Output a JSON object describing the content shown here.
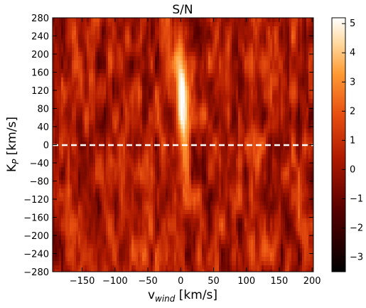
{
  "chart_data": {
    "type": "heatmap",
    "title": "S/N",
    "xlabel": {
      "main": "v",
      "sub": "wind",
      "unit": " [km/s]"
    },
    "ylabel": {
      "main": "K",
      "sub": "P",
      "unit": " [km/s]"
    },
    "xlim": [
      -195,
      202
    ],
    "ylim": [
      -280,
      280
    ],
    "x_ticks": [
      "−150",
      "−100",
      "−50",
      "0",
      "50",
      "100",
      "150",
      "200"
    ],
    "x_tick_values": [
      -150,
      -100,
      -50,
      0,
      50,
      100,
      150,
      200
    ],
    "y_ticks": [
      "280",
      "240",
      "200",
      "160",
      "120",
      "80",
      "40",
      "0",
      "−40",
      "−80",
      "−120",
      "−160",
      "−200",
      "−240",
      "−280"
    ],
    "y_tick_values": [
      280,
      240,
      200,
      160,
      120,
      80,
      40,
      0,
      -40,
      -80,
      -120,
      -160,
      -200,
      -240,
      -280
    ],
    "colorbar": {
      "range": [
        -3.5,
        5.2
      ],
      "ticks": [
        "5",
        "4",
        "3",
        "2",
        "1",
        "0",
        "−1",
        "−2",
        "−3"
      ],
      "tick_values": [
        5,
        4,
        3,
        2,
        1,
        0,
        -1,
        -2,
        -3
      ],
      "colormap": "gist_heat"
    },
    "reference_line": {
      "y": 0,
      "style": "dashed",
      "color": "#ffffff"
    },
    "peak": {
      "x": 2,
      "y": 100,
      "sn": 5.2
    }
  }
}
